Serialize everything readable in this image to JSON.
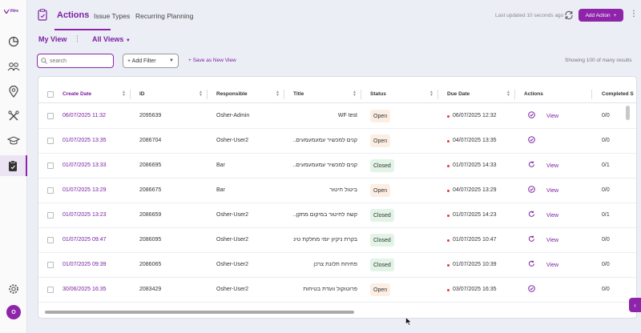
{
  "app": {
    "logo_text": "Vitre"
  },
  "sidebar": {
    "items": [
      {
        "icon": "chart-icon"
      },
      {
        "icon": "users-icon"
      },
      {
        "icon": "location-icon"
      },
      {
        "icon": "tools-icon"
      },
      {
        "icon": "graduation-icon"
      },
      {
        "icon": "clipboard-icon",
        "active": true
      }
    ],
    "settings_icon": "gear-icon",
    "avatar_initial": "O"
  },
  "header": {
    "title": "Actions",
    "tabs": [
      "Issue Types",
      "Recurring Planning"
    ],
    "last_updated": "Last updated  10 seconds ago",
    "add_action_label": "Add Action",
    "add_action_icon": "+"
  },
  "views": {
    "my_view": "My View",
    "all_views": "All Views"
  },
  "toolbar": {
    "search_placeholder": "search",
    "add_filter": "+ Add Filter",
    "save_view": "+ Save as New View",
    "showing": "Showing 100 of many results"
  },
  "table": {
    "columns": [
      "Create Date",
      "ID",
      "Responsible",
      "Title",
      "Status",
      "Due Date",
      "Actions",
      "Completed S"
    ],
    "rows": [
      {
        "create": "06/07/2025 11:32",
        "id": "2095639",
        "resp": "Osher-Admin",
        "title": "WF test",
        "status": "Open",
        "due": "06/07/2025 12:32",
        "act": "check",
        "view": "View",
        "completed": "0/0"
      },
      {
        "create": "01/07/2025 13:35",
        "id": "2086704",
        "resp": "Osher-User2",
        "title": "קנים למכשיר עמעמעמעים...",
        "status": "Open",
        "due": "04/07/2025 13:35",
        "act": "check",
        "view": "",
        "completed": "0/0"
      },
      {
        "create": "01/07/2025 13:33",
        "id": "2086695",
        "resp": "Bar",
        "title": "קנים למכשיר עמעמעמעים...",
        "status": "Closed",
        "due": "01/07/2025 14:33",
        "act": "redo",
        "view": "View",
        "completed": "0/1"
      },
      {
        "create": "01/07/2025 13:29",
        "id": "2086675",
        "resp": "Bar",
        "title": "ביטול חיטור",
        "status": "Open",
        "due": "04/07/2025 13:29",
        "act": "check",
        "view": "View",
        "completed": "0/0"
      },
      {
        "create": "01/07/2025 13:23",
        "id": "2086659",
        "resp": "Osher-User2",
        "title": "קשה לחיטור במיקום מתקן...",
        "status": "Closed",
        "due": "01/07/2025 14:23",
        "act": "redo",
        "view": "View",
        "completed": "0/1"
      },
      {
        "create": "01/07/2025 09:47",
        "id": "2086095",
        "resp": "Osher-User2",
        "title": "בקרת ניקיון יומי מחלקת טינון...",
        "status": "Closed",
        "due": "01/07/2025 10:47",
        "act": "redo",
        "view": "View",
        "completed": "0/0"
      },
      {
        "create": "01/07/2025 09:39",
        "id": "2086065",
        "resp": "Osher-User2",
        "title": "פתיחת תלונת צרכן",
        "status": "Closed",
        "due": "01/07/2025 10:39",
        "act": "redo",
        "view": "View",
        "completed": "0/0"
      },
      {
        "create": "30/06/2025 16:35",
        "id": "2083429",
        "resp": "Osher-User2",
        "title": "פרוטוקול וועדת בטיחות",
        "status": "Open",
        "due": "03/07/2025 16:35",
        "act": "check",
        "view": "",
        "completed": "0/0"
      }
    ]
  },
  "colors": {
    "accent": "#8e24aa",
    "open_bg": "#fdeee3",
    "closed_bg": "#e2f4e6",
    "due_dot": "#e53935"
  }
}
